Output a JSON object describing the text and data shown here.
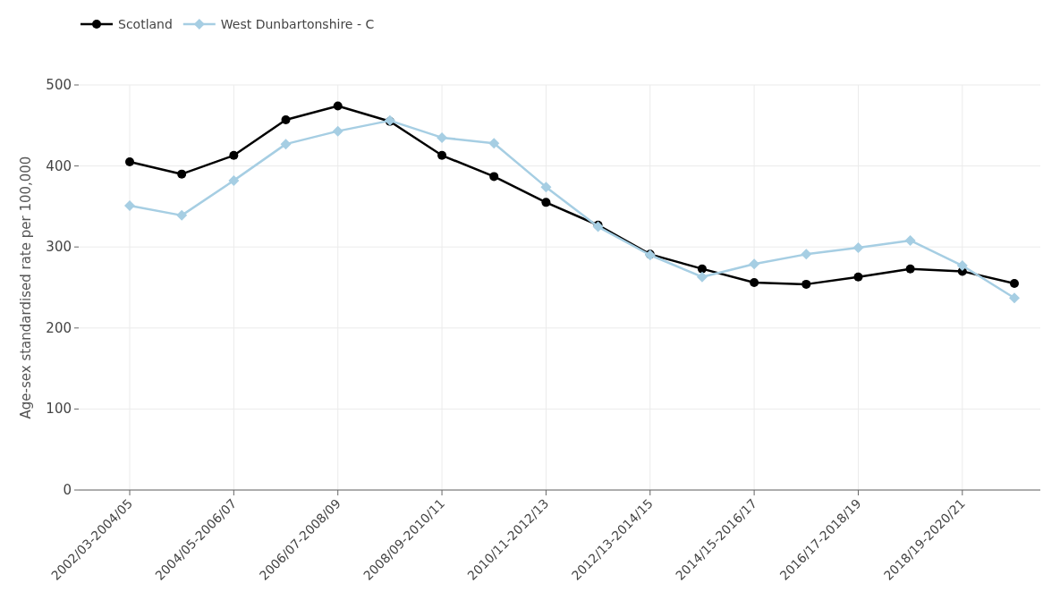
{
  "chart_data": {
    "type": "line",
    "ylabel": "Age-sex standardised rate per 100,000",
    "categories": [
      "2002/03-2004/05",
      null,
      "2004/05-2006/07",
      null,
      "2006/07-2008/09",
      null,
      "2008/09-2010/11",
      null,
      "2010/11-2012/13",
      null,
      "2012/13-2014/15",
      null,
      "2014/15-2016/17",
      null,
      "2016/17-2018/19",
      null,
      "2018/19-2020/21",
      null
    ],
    "series": [
      {
        "name": "Scotland",
        "color": "#000000",
        "marker": "circle",
        "values": [
          405,
          390,
          413,
          457,
          474,
          455,
          413,
          387,
          355,
          327,
          291,
          273,
          256,
          254,
          263,
          273,
          270,
          255
        ]
      },
      {
        "name": "West Dunbartonshire - C",
        "color": "#a6cee3",
        "marker": "diamond",
        "values": [
          351,
          339,
          382,
          427,
          443,
          456,
          435,
          428,
          374,
          325,
          290,
          263,
          279,
          291,
          299,
          308,
          277,
          237
        ]
      }
    ],
    "ylim": [
      0,
      500
    ],
    "yticks": [
      0,
      100,
      200,
      300,
      400,
      500
    ],
    "grid": true,
    "legend": "top left",
    "line_style": "solid"
  }
}
